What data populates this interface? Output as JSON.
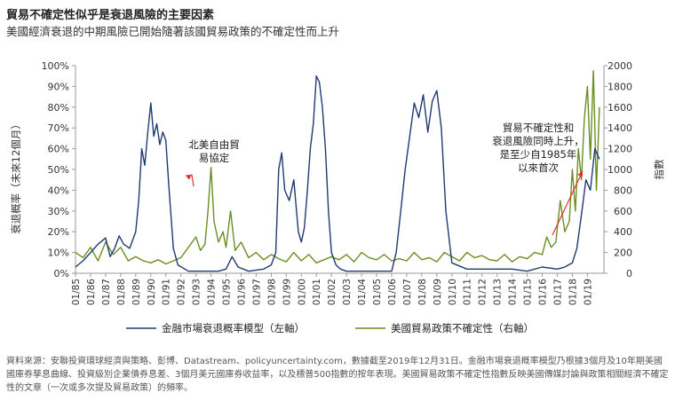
{
  "title": "貿易不確定性似乎是衰退風險的主要因素",
  "subtitle": "美國經濟衰退的中期風險已開始隨著該國貿易政策的不確定性而上升",
  "source_note": "資料來源：安聯投資環球經濟與策略、彭博、Datastream、policyuncertainty.com，數據截至2019年12月31日。金融市場衰退概率模型乃根據3個月及10年期美國國庫券孳息曲線、投資級別企業債券息差、3個月美元國庫券收益率，以及標普500指數的按年表現。美國貿易政策不確定性指數反映美國傳媒討論與政策相關經濟不確定性的文章（一次或多次提及貿易政策）的頻率。",
  "colors": {
    "recession": "#1f3a73",
    "trade": "#6b8e23",
    "arrow": "#e03030",
    "axis": "#999999"
  },
  "chart_data": {
    "type": "line",
    "xlabel": "",
    "ylabel_left": "衰退概率（未來12個月）",
    "ylabel_right": "指數",
    "ylim_left": [
      0,
      100
    ],
    "ylim_right": [
      0,
      2000
    ],
    "yticks_left": [
      "0%",
      "10%",
      "20%",
      "30%",
      "40%",
      "50%",
      "60%",
      "70%",
      "80%",
      "90%",
      "100%"
    ],
    "yticks_right": [
      "0",
      "200",
      "400",
      "600",
      "800",
      "1000",
      "1200",
      "1400",
      "1600",
      "1800",
      "2000"
    ],
    "x_ticks": [
      "01/85",
      "01/86",
      "01/87",
      "01/88",
      "01/89",
      "01/90",
      "01/91",
      "01/92",
      "01/93",
      "01/94",
      "01/95",
      "01/96",
      "01/97",
      "01/98",
      "01/99",
      "01/00",
      "01/01",
      "01/02",
      "01/03",
      "01/04",
      "01/05",
      "01/06",
      "01/07",
      "01/08",
      "01/09",
      "01/10",
      "01/11",
      "01/12",
      "01/13",
      "01/14",
      "01/15",
      "01/16",
      "01/17",
      "01/18",
      "01/19"
    ],
    "grid": false,
    "legend": "bottom",
    "series": [
      {
        "name": "金融市場衰退概率模型（左軸）",
        "axis": "left",
        "x": [
          1985.0,
          1985.5,
          1986.0,
          1986.5,
          1987.0,
          1987.3,
          1987.6,
          1987.9,
          1988.2,
          1988.6,
          1989.0,
          1989.2,
          1989.4,
          1989.6,
          1989.8,
          1990.0,
          1990.2,
          1990.4,
          1990.6,
          1990.8,
          1991.0,
          1991.2,
          1991.5,
          1991.8,
          1992.5,
          1993.5,
          1994.5,
          1995.0,
          1995.4,
          1995.8,
          1996.5,
          1997.5,
          1998.0,
          1998.3,
          1998.5,
          1998.7,
          1998.9,
          1999.2,
          1999.5,
          1999.8,
          2000.0,
          2000.2,
          2000.4,
          2000.6,
          2000.8,
          2001.0,
          2001.2,
          2001.4,
          2001.6,
          2001.8,
          2002.0,
          2002.3,
          2002.6,
          2003.0,
          2004.0,
          2005.0,
          2006.0,
          2006.3,
          2006.6,
          2006.9,
          2007.2,
          2007.5,
          2007.8,
          2008.1,
          2008.4,
          2008.7,
          2009.0,
          2009.3,
          2009.6,
          2010.0,
          2011.0,
          2012.0,
          2013.0,
          2014.0,
          2015.0,
          2016.0,
          2017.0,
          2017.5,
          2018.0,
          2018.3,
          2018.6,
          2018.9,
          2019.2,
          2019.5,
          2019.8
        ],
        "values": [
          3,
          6,
          10,
          14,
          17,
          8,
          12,
          18,
          14,
          12,
          20,
          35,
          60,
          52,
          68,
          82,
          66,
          72,
          62,
          68,
          64,
          42,
          12,
          4,
          1,
          1,
          1,
          2,
          8,
          3,
          1,
          2,
          4,
          10,
          50,
          58,
          40,
          35,
          45,
          20,
          15,
          22,
          40,
          60,
          72,
          95,
          92,
          80,
          60,
          30,
          10,
          4,
          2,
          1,
          1,
          1,
          1,
          10,
          30,
          50,
          66,
          82,
          75,
          86,
          68,
          83,
          88,
          70,
          30,
          5,
          2,
          2,
          2,
          2,
          1,
          3,
          2,
          3,
          5,
          12,
          28,
          45,
          40,
          60,
          55
        ]
      },
      {
        "name": "美國貿易政策不確定性（右軸）",
        "axis": "right",
        "x": [
          1985.0,
          1985.5,
          1986.0,
          1986.5,
          1987.0,
          1987.5,
          1988.0,
          1988.5,
          1989.0,
          1989.5,
          1990.0,
          1990.5,
          1991.0,
          1991.5,
          1992.0,
          1992.5,
          1993.0,
          1993.3,
          1993.6,
          1993.8,
          1994.0,
          1994.2,
          1994.5,
          1994.8,
          1995.0,
          1995.3,
          1995.6,
          1996.0,
          1996.5,
          1997.0,
          1997.5,
          1998.0,
          1998.5,
          1999.0,
          1999.5,
          2000.0,
          2000.5,
          2001.0,
          2001.5,
          2002.0,
          2002.5,
          2003.0,
          2003.5,
          2004.0,
          2004.5,
          2005.0,
          2005.5,
          2006.0,
          2006.5,
          2007.0,
          2007.5,
          2008.0,
          2008.5,
          2009.0,
          2009.5,
          2010.0,
          2010.5,
          2011.0,
          2011.5,
          2012.0,
          2012.5,
          2013.0,
          2013.5,
          2014.0,
          2014.5,
          2015.0,
          2015.5,
          2016.0,
          2016.3,
          2016.6,
          2016.9,
          2017.2,
          2017.5,
          2017.8,
          2018.0,
          2018.2,
          2018.4,
          2018.6,
          2018.8,
          2019.0,
          2019.2,
          2019.4,
          2019.5,
          2019.6,
          2019.8
        ],
        "values": [
          200,
          150,
          250,
          120,
          300,
          180,
          250,
          120,
          160,
          120,
          100,
          130,
          90,
          120,
          150,
          250,
          350,
          220,
          280,
          600,
          1020,
          500,
          300,
          400,
          250,
          600,
          220,
          300,
          150,
          200,
          130,
          180,
          140,
          110,
          200,
          120,
          180,
          100,
          130,
          160,
          130,
          180,
          110,
          200,
          150,
          130,
          180,
          120,
          140,
          120,
          200,
          130,
          150,
          110,
          200,
          160,
          120,
          200,
          150,
          170,
          130,
          120,
          180,
          110,
          160,
          140,
          200,
          180,
          350,
          250,
          300,
          700,
          400,
          500,
          1000,
          600,
          1200,
          900,
          1500,
          1800,
          1100,
          1950,
          1400,
          800,
          1600
        ]
      }
    ],
    "annotations": [
      {
        "text": [
          "北美自由貿",
          "易協定"
        ],
        "target": {
          "x": 1993.9,
          "y_right": 1020
        }
      },
      {
        "text": [
          "貿易不確定性和",
          "衰退風險同時上升，",
          "是至少自1985年",
          "以來首次"
        ],
        "target": {
          "x": 2018.0,
          "y_right": 1000
        }
      }
    ]
  }
}
